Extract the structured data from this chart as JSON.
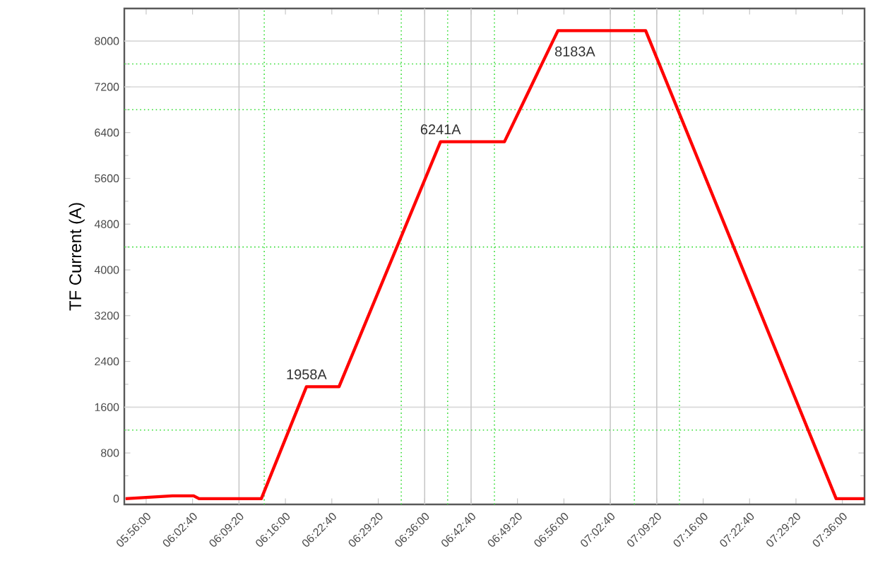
{
  "chart_data": {
    "type": "line",
    "ylabel": "TF Current (A)",
    "x": [
      5.884,
      5.996,
      6.047,
      6.06,
      6.209,
      6.317,
      6.395,
      6.638,
      6.791,
      6.919,
      7.129,
      7.585,
      7.653
    ],
    "series": [
      {
        "color": "#ff0000",
        "values": [
          0,
          50,
          50,
          0,
          0,
          1958,
          1958,
          6241,
          6241,
          8183,
          8183,
          0,
          0
        ]
      }
    ],
    "xlim": [
      5.881,
      7.653
    ],
    "ylim": [
      -100,
      8570
    ],
    "xticks": [
      {
        "value": 5.9333,
        "label": "05:56:00"
      },
      {
        "value": 6.0444,
        "label": "06:02:40"
      },
      {
        "value": 6.1556,
        "label": "06:09:20"
      },
      {
        "value": 6.2667,
        "label": "06:16:00"
      },
      {
        "value": 6.3778,
        "label": "06:22:40"
      },
      {
        "value": 6.4889,
        "label": "06:29:20"
      },
      {
        "value": 6.6,
        "label": "06:36:00"
      },
      {
        "value": 6.7111,
        "label": "06:42:40"
      },
      {
        "value": 6.8222,
        "label": "06:49:20"
      },
      {
        "value": 6.9333,
        "label": "06:56:00"
      },
      {
        "value": 7.0444,
        "label": "07:02:40"
      },
      {
        "value": 7.1556,
        "label": "07:09:20"
      },
      {
        "value": 7.2667,
        "label": "07:16:00"
      },
      {
        "value": 7.3778,
        "label": "07:22:40"
      },
      {
        "value": 7.4889,
        "label": "07:29:20"
      },
      {
        "value": 7.6,
        "label": "07:36:00"
      }
    ],
    "yticks": [
      0,
      800,
      1600,
      2400,
      3200,
      4000,
      4800,
      5600,
      6400,
      7200,
      8000
    ],
    "annotations": [
      {
        "text": "1958A",
        "x": 6.317,
        "y": 1958
      },
      {
        "text": "6241A",
        "x": 6.638,
        "y": 6241
      },
      {
        "text": "8183A",
        "x": 6.919,
        "y": 8183
      }
    ],
    "ref_lines": [
      {
        "axis": "y",
        "value": 1600,
        "color": "#d9d9d9",
        "line_style": "solid"
      },
      {
        "axis": "y",
        "value": 7200,
        "color": "#d9d9d9",
        "line_style": "solid"
      },
      {
        "axis": "y",
        "value": 8000,
        "color": "#d9d9d9",
        "line_style": "solid"
      },
      {
        "axis": "x",
        "value": 6.1556,
        "color": "#c8c8c8",
        "line_style": "solid"
      },
      {
        "axis": "x",
        "value": 6.6,
        "color": "#c8c8c8",
        "line_style": "solid"
      },
      {
        "axis": "x",
        "value": 6.7111,
        "color": "#c8c8c8",
        "line_style": "solid"
      },
      {
        "axis": "x",
        "value": 7.0444,
        "color": "#c8c8c8",
        "line_style": "solid"
      },
      {
        "axis": "x",
        "value": 7.1556,
        "color": "#c8c8c8",
        "line_style": "solid"
      },
      {
        "axis": "y",
        "value": 1200,
        "color": "#33dd33",
        "line_style": "dotted"
      },
      {
        "axis": "y",
        "value": 4400,
        "color": "#33dd33",
        "line_style": "dotted"
      },
      {
        "axis": "y",
        "value": 6800,
        "color": "#33dd33",
        "line_style": "dotted"
      },
      {
        "axis": "y",
        "value": 7600,
        "color": "#33dd33",
        "line_style": "dotted"
      },
      {
        "axis": "x",
        "value": 6.216,
        "color": "#33dd33",
        "line_style": "dotted"
      },
      {
        "axis": "x",
        "value": 6.544,
        "color": "#33dd33",
        "line_style": "dotted"
      },
      {
        "axis": "x",
        "value": 6.655,
        "color": "#33dd33",
        "line_style": "dotted"
      },
      {
        "axis": "x",
        "value": 6.767,
        "color": "#33dd33",
        "line_style": "dotted"
      },
      {
        "axis": "x",
        "value": 7.102,
        "color": "#33dd33",
        "line_style": "dotted"
      },
      {
        "axis": "x",
        "value": 7.21,
        "color": "#33dd33",
        "line_style": "dotted"
      }
    ],
    "grid": false,
    "marker": "none",
    "line_style": "solid"
  }
}
